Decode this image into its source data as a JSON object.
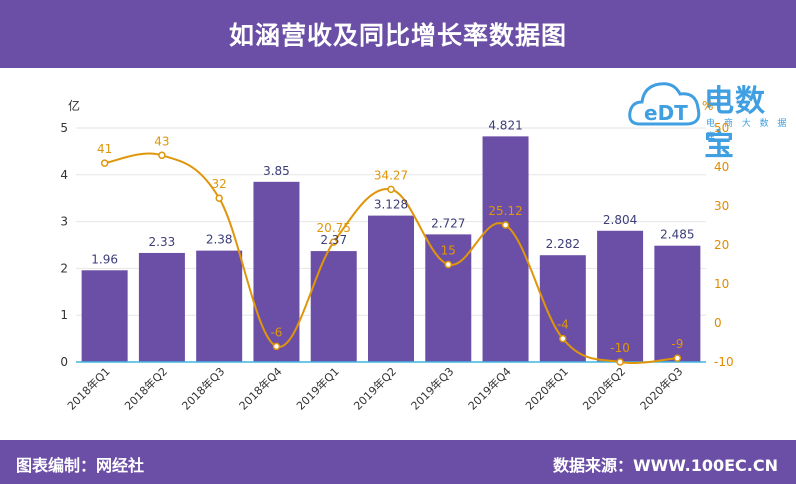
{
  "header": {
    "title": "如涵营收及同比增长率数据图"
  },
  "footer": {
    "left": "图表编制：网经社",
    "right": "数据来源：WWW.100EC.CN"
  },
  "logo": {
    "title": "电数宝",
    "badge": "eDT",
    "subtitle": "电 商 大 数 据 库"
  },
  "colors": {
    "header_bg": "#6b4fa6",
    "bar": "#6b4fa6",
    "line": "#e0960a",
    "axis_right": "#e08c00",
    "logo": "#3f9fe0"
  },
  "chart_data": {
    "type": "bar",
    "categories": [
      "2018年Q1",
      "2018年Q2",
      "2018年Q3",
      "2018年Q4",
      "2019年Q1",
      "2019年Q2",
      "2019年Q3",
      "2019年Q4",
      "2020年Q1",
      "2020年Q2",
      "2020年Q3"
    ],
    "series": [
      {
        "type": "bar",
        "axis": "left",
        "values": [
          1.96,
          2.33,
          2.38,
          3.85,
          2.37,
          3.128,
          2.727,
          4.821,
          2.282,
          2.804,
          2.485
        ],
        "labels": [
          "1.96",
          "2.33",
          "2.38",
          "3.85",
          "2.37",
          "3.128",
          "2.727",
          "4.821",
          "2.282",
          "2.804",
          "2.485"
        ]
      },
      {
        "type": "line",
        "axis": "right",
        "values": [
          41,
          43,
          32,
          -6,
          20.75,
          34.27,
          15,
          25.12,
          -4,
          -10,
          -9
        ],
        "labels": [
          "41",
          "43",
          "32",
          "-6",
          "20.75",
          "34.27",
          "15",
          "25.12",
          "-4",
          "-10",
          "-9"
        ]
      }
    ],
    "y_left": {
      "unit": "亿",
      "min": 0,
      "max": 5,
      "ticks": [
        "0",
        "1",
        "2",
        "3",
        "4",
        "5"
      ]
    },
    "y_right": {
      "unit": "%",
      "min": -10,
      "max": 50,
      "ticks": [
        "-10",
        "0",
        "10",
        "20",
        "30",
        "40",
        "50"
      ]
    },
    "grid": true,
    "legend": "none"
  }
}
